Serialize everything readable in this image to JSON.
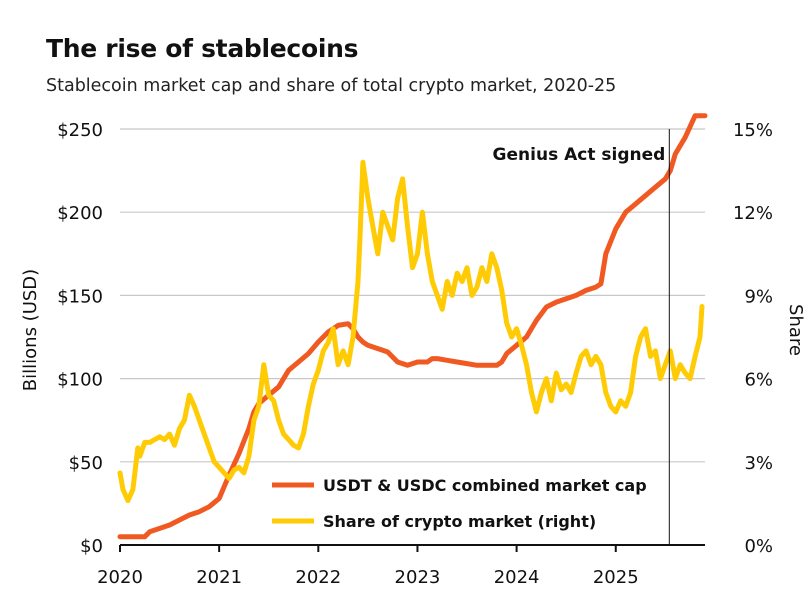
{
  "chart_data": {
    "type": "line",
    "title": "The rise of stablecoins",
    "subtitle": "Stablecoin market cap and share of total crypto market, 2020-25",
    "ylabel": "Billions (USD)",
    "y2label": "Share",
    "x_ticks": [
      "2020",
      "2021",
      "2022",
      "2023",
      "2024",
      "2025"
    ],
    "y_ticks": [
      "$0",
      "$50",
      "$100",
      "$150",
      "$200",
      "$250"
    ],
    "y2_ticks": [
      "0%",
      "3%",
      "6%",
      "9%",
      "12%",
      "15%"
    ],
    "ylim": [
      0,
      250
    ],
    "y2lim": [
      0,
      15
    ],
    "xlim": [
      2020.0,
      2025.9
    ],
    "grid": true,
    "legend_position": "bottom-right",
    "annotation": {
      "text": "Genius Act signed",
      "x": 2025.54
    },
    "series": [
      {
        "name": "USDT & USDC combined market cap",
        "axis": "left",
        "color": "#f05a22",
        "x": [
          2020.0,
          2020.1,
          2020.2,
          2020.25,
          2020.3,
          2020.4,
          2020.5,
          2020.6,
          2020.7,
          2020.8,
          2020.9,
          2021.0,
          2021.05,
          2021.1,
          2021.2,
          2021.3,
          2021.35,
          2021.4,
          2021.5,
          2021.6,
          2021.65,
          2021.7,
          2021.8,
          2021.9,
          2022.0,
          2022.1,
          2022.2,
          2022.3,
          2022.35,
          2022.4,
          2022.45,
          2022.5,
          2022.6,
          2022.7,
          2022.8,
          2022.9,
          2023.0,
          2023.1,
          2023.15,
          2023.2,
          2023.3,
          2023.4,
          2023.5,
          2023.6,
          2023.7,
          2023.8,
          2023.85,
          2023.9,
          2024.0,
          2024.1,
          2024.2,
          2024.3,
          2024.4,
          2024.5,
          2024.6,
          2024.7,
          2024.8,
          2024.85,
          2024.9,
          2025.0,
          2025.1,
          2025.2,
          2025.3,
          2025.4,
          2025.5,
          2025.55,
          2025.6,
          2025.7,
          2025.8,
          2025.9
        ],
        "y": [
          5,
          5,
          5,
          5,
          8,
          10,
          12,
          15,
          18,
          20,
          23,
          28,
          35,
          42,
          55,
          70,
          80,
          85,
          90,
          95,
          100,
          105,
          110,
          115,
          122,
          128,
          132,
          133,
          130,
          125,
          122,
          120,
          118,
          116,
          110,
          108,
          110,
          110,
          112,
          112,
          111,
          110,
          109,
          108,
          108,
          108,
          110,
          115,
          120,
          125,
          135,
          143,
          146,
          148,
          150,
          153,
          155,
          157,
          175,
          190,
          200,
          205,
          210,
          215,
          220,
          225,
          235,
          245,
          258,
          258
        ]
      },
      {
        "name": "Share of crypto market (right)",
        "axis": "right",
        "color": "#ffcb05",
        "x": [
          2020.0,
          2020.03,
          2020.08,
          2020.13,
          2020.18,
          2020.2,
          2020.25,
          2020.3,
          2020.35,
          2020.4,
          2020.45,
          2020.5,
          2020.55,
          2020.6,
          2020.65,
          2020.7,
          2020.75,
          2020.8,
          2020.85,
          2020.9,
          2020.95,
          2021.0,
          2021.05,
          2021.1,
          2021.15,
          2021.2,
          2021.25,
          2021.3,
          2021.35,
          2021.4,
          2021.45,
          2021.5,
          2021.55,
          2021.6,
          2021.65,
          2021.7,
          2021.75,
          2021.8,
          2021.85,
          2021.9,
          2021.95,
          2022.0,
          2022.05,
          2022.1,
          2022.15,
          2022.2,
          2022.25,
          2022.3,
          2022.35,
          2022.4,
          2022.42,
          2022.45,
          2022.5,
          2022.55,
          2022.6,
          2022.65,
          2022.7,
          2022.75,
          2022.8,
          2022.85,
          2022.9,
          2022.95,
          2023.0,
          2023.05,
          2023.1,
          2023.15,
          2023.2,
          2023.25,
          2023.3,
          2023.35,
          2023.4,
          2023.45,
          2023.5,
          2023.55,
          2023.6,
          2023.65,
          2023.7,
          2023.75,
          2023.8,
          2023.85,
          2023.9,
          2023.95,
          2024.0,
          2024.05,
          2024.1,
          2024.15,
          2024.2,
          2024.25,
          2024.3,
          2024.35,
          2024.4,
          2024.45,
          2024.5,
          2024.55,
          2024.6,
          2024.65,
          2024.7,
          2024.75,
          2024.8,
          2024.85,
          2024.9,
          2024.95,
          2025.0,
          2025.05,
          2025.1,
          2025.15,
          2025.2,
          2025.25,
          2025.3,
          2025.35,
          2025.4,
          2025.45,
          2025.5,
          2025.55,
          2025.6,
          2025.65,
          2025.7,
          2025.75,
          2025.8,
          2025.85,
          2025.87
        ],
        "y": [
          2.6,
          2.0,
          1.6,
          2.0,
          3.5,
          3.2,
          3.7,
          3.7,
          3.8,
          3.9,
          3.8,
          4.0,
          3.6,
          4.2,
          4.5,
          5.4,
          5.0,
          4.5,
          4.0,
          3.5,
          3.0,
          2.8,
          2.6,
          2.4,
          2.7,
          2.8,
          2.6,
          3.2,
          4.5,
          5.0,
          6.5,
          5.4,
          5.2,
          4.5,
          4.0,
          3.8,
          3.6,
          3.5,
          4.0,
          5.0,
          5.8,
          6.3,
          7.0,
          7.3,
          7.8,
          6.5,
          7.0,
          6.5,
          7.5,
          9.5,
          11.0,
          13.8,
          12.5,
          11.5,
          10.5,
          12.0,
          11.5,
          11.0,
          12.5,
          13.2,
          11.5,
          10.0,
          10.5,
          12.0,
          10.5,
          9.5,
          9.0,
          8.5,
          9.5,
          9.0,
          9.8,
          9.5,
          10.0,
          9.0,
          9.3,
          10.0,
          9.5,
          10.5,
          10.0,
          9.2,
          8.0,
          7.5,
          7.8,
          7.2,
          6.5,
          5.5,
          4.8,
          5.5,
          6.0,
          5.2,
          6.2,
          5.6,
          5.8,
          5.5,
          6.2,
          6.8,
          7.0,
          6.5,
          6.8,
          6.5,
          5.5,
          5.0,
          4.8,
          5.2,
          5.0,
          5.5,
          6.8,
          7.5,
          7.8,
          6.8,
          7.0,
          6.0,
          6.5,
          7.0,
          6.0,
          6.5,
          6.2,
          6.0,
          6.8,
          7.5,
          8.6
        ]
      }
    ]
  }
}
